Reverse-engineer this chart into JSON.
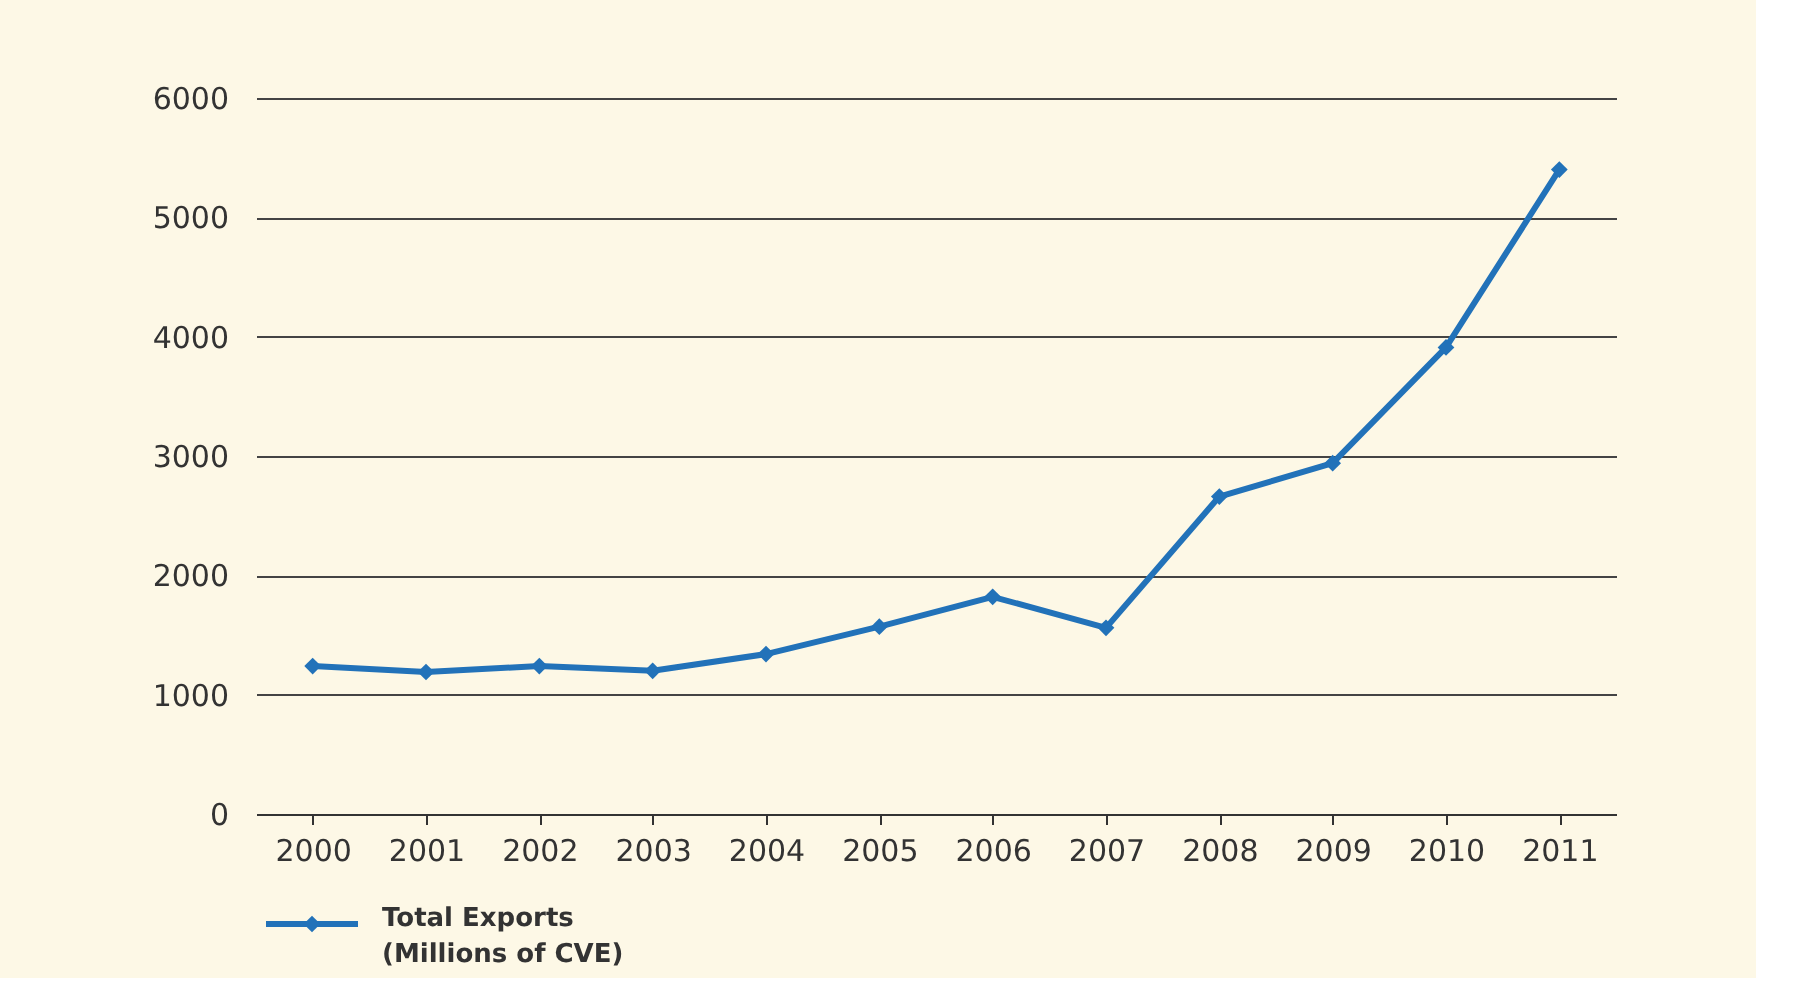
{
  "chart_data": {
    "type": "line",
    "categories": [
      "2000",
      "2001",
      "2002",
      "2003",
      "2004",
      "2005",
      "2006",
      "2007",
      "2008",
      "2009",
      "2010",
      "2011"
    ],
    "series": [
      {
        "name": "Total Exports\n(Millions of CVE)",
        "color": "#2272b9",
        "values": [
          1240,
          1190,
          1240,
          1200,
          1340,
          1570,
          1820,
          1560,
          2660,
          2940,
          3910,
          5400
        ]
      }
    ],
    "ylim": [
      0,
      6000
    ],
    "yticks": [
      0,
      1000,
      2000,
      3000,
      4000,
      5000,
      6000
    ],
    "grid": "y",
    "legend": "bottom left",
    "marker": "diamond",
    "line_style": "solid"
  }
}
